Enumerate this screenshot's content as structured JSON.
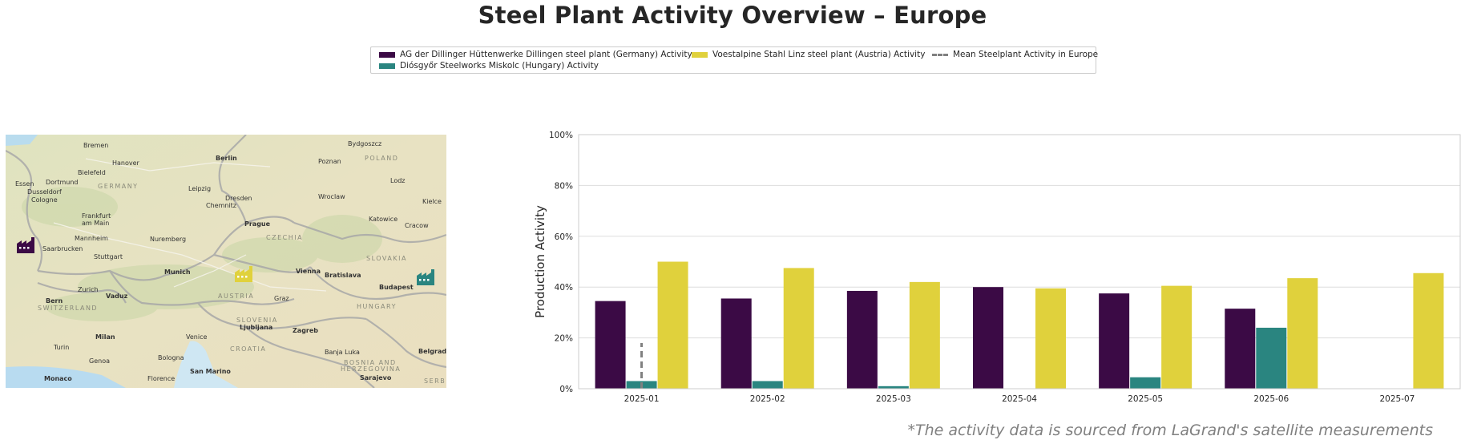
{
  "title": "Steel Plant Activity Overview – Europe",
  "legend": {
    "items": [
      {
        "label": "AG der Dillinger Hüttenwerke Dillingen steel plant (Germany) Activity",
        "color": "#3b0a45",
        "kind": "bar"
      },
      {
        "label": "Diósgyőr Steelworks Miskolc (Hungary) Activity",
        "color": "#2a8580",
        "kind": "bar"
      },
      {
        "label": "Voestalpine Stahl Linz steel plant (Austria) Activity",
        "color": "#e0d13c",
        "kind": "bar"
      },
      {
        "label": "Mean Steelplant Activity in Europe",
        "color": "#808080",
        "kind": "dash"
      }
    ]
  },
  "map": {
    "cities": [
      "Bremen",
      "Bydgoszcz",
      "Hanover",
      "Berlin",
      "Poznan",
      "POLAND",
      "Bielefeld",
      "Dortmund",
      "Essen",
      "Dusseldorf",
      "Cologne",
      "GERMANY",
      "Leipzig",
      "Lodz",
      "Wroclaw",
      "Dresden",
      "Chemnitz",
      "Kielce",
      "Frankfurt am Main",
      "Katowice",
      "Prague",
      "Cracow",
      "Mannheim",
      "Nuremberg",
      "CZECHIA",
      "Saarbrucken",
      "Stuttgart",
      "SLOVAKIA",
      "Munich",
      "Vienna",
      "Bratislava",
      "Budapest",
      "Zurich",
      "Vaduz",
      "Bern",
      "SWITZERLAND",
      "AUSTRIA",
      "Graz",
      "HUNGARY",
      "SLOVENIA",
      "Ljubljana",
      "Zagreb",
      "Milan",
      "Venice",
      "CROATIA",
      "Turin",
      "Genoa",
      "Bologna",
      "San Marino",
      "Banja Luka",
      "BOSNIA AND HERZEGOVINA",
      "Belgrade",
      "Monaco",
      "Florence",
      "Sarajevo",
      "SERB"
    ],
    "markers": [
      {
        "name": "dillingen-plant-marker",
        "color": "#3b0a45"
      },
      {
        "name": "linz-plant-marker",
        "color": "#e0d13c"
      },
      {
        "name": "miskolc-plant-marker",
        "color": "#2a8580"
      }
    ]
  },
  "chart_data": {
    "type": "bar",
    "categories": [
      "2025-01",
      "2025-02",
      "2025-03",
      "2025-04",
      "2025-05",
      "2025-06",
      "2025-07"
    ],
    "series": [
      {
        "name": "AG der Dillinger Hüttenwerke Dillingen steel plant (Germany) Activity",
        "color": "#3b0a45",
        "values": [
          34.5,
          35.5,
          38.5,
          40,
          37.5,
          31.5,
          null
        ]
      },
      {
        "name": "Diósgyőr Steelworks Miskolc (Hungary) Activity",
        "color": "#2a8580",
        "values": [
          3,
          3,
          1,
          null,
          4.5,
          24,
          null
        ]
      },
      {
        "name": "Voestalpine Stahl Linz steel plant (Austria) Activity",
        "color": "#e0d13c",
        "values": [
          50,
          47.5,
          42,
          39.5,
          40.5,
          43.5,
          45.5
        ]
      }
    ],
    "mean_line": {
      "name": "Mean Steelplant Activity in Europe",
      "category": "2025-01",
      "from": 0,
      "to": 18
    },
    "ylabel": "Production Activity",
    "xlabel": "",
    "ylim": [
      0,
      100
    ],
    "yticks": [
      0,
      20,
      40,
      60,
      80,
      100
    ],
    "ytick_labels": [
      "0%",
      "20%",
      "40%",
      "60%",
      "80%",
      "100%"
    ],
    "grid": true
  },
  "footnote": "*The activity data is sourced from LaGrand's satellite measurements"
}
